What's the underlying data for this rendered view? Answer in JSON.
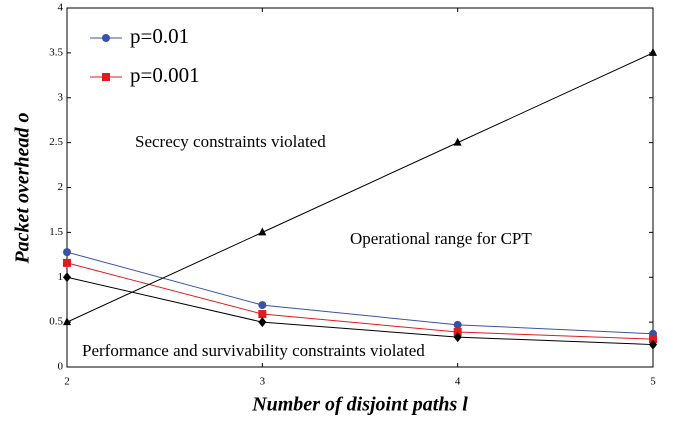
{
  "chart_data": {
    "type": "line",
    "x_label": "Number of disjoint paths l",
    "y_label": "Packet overhead o",
    "x": [
      2,
      3,
      4,
      5
    ],
    "xlim": [
      2,
      5
    ],
    "xticks": [
      2,
      3,
      4,
      5
    ],
    "ylim": [
      0,
      4
    ],
    "yticks": [
      0,
      0.5,
      1,
      1.5,
      2,
      2.5,
      3,
      3.5,
      4
    ],
    "series": [
      {
        "name": "p=0.01",
        "color": "#3953a4",
        "marker": "circle",
        "values": [
          1.28,
          0.69,
          0.47,
          0.37
        ]
      },
      {
        "name": "p=0.001",
        "color": "#e41a1c",
        "marker": "square",
        "values": [
          1.16,
          0.59,
          0.39,
          0.31
        ]
      },
      {
        "color": "#000000",
        "marker": "triangle",
        "values": [
          0.5,
          1.5,
          2.5,
          3.5
        ]
      },
      {
        "color": "#000000",
        "marker": "diamond",
        "values": [
          1.0,
          0.5,
          0.333,
          0.25
        ]
      }
    ],
    "annotations": [
      "Secrecy constraints violated",
      "Operational range for CPT",
      "Performance and survivability constraints violated"
    ],
    "legend": "upper left"
  }
}
